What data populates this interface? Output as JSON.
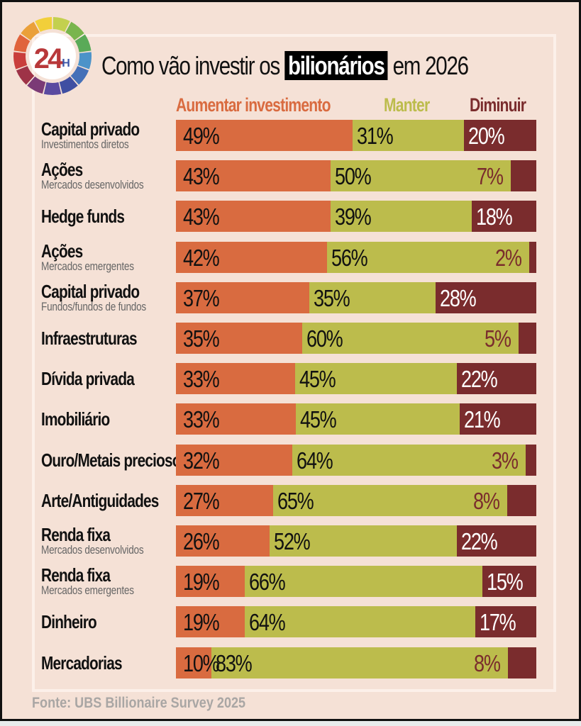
{
  "logo": {
    "text": "24",
    "suffix": "H"
  },
  "header": {
    "title_before": "Como vão investir os",
    "title_highlight": "bilionários",
    "title_after": "em 2026"
  },
  "colors": {
    "aumentar": "#d96b40",
    "manter": "#bcbc4c",
    "diminuir": "#7a2c2d",
    "background": "#f5e1d6"
  },
  "source": "Fonte: UBS Billionaire Survey 2025",
  "chart_data": {
    "type": "bar",
    "orientation": "horizontal",
    "stacked": true,
    "title": "Como vão investir os bilionários em 2026",
    "xlabel": "",
    "ylabel": "",
    "xlim": [
      0,
      100
    ],
    "unit": "%",
    "legend": [
      "Aumentar investimento",
      "Manter",
      "Diminuir"
    ],
    "legend_placement": "top",
    "categories": [
      {
        "name": "Capital privado",
        "sub": "Investimentos diretos"
      },
      {
        "name": "Ações",
        "sub": "Mercados desenvolvidos"
      },
      {
        "name": "Hedge funds",
        "sub": ""
      },
      {
        "name": "Ações",
        "sub": "Mercados emergentes"
      },
      {
        "name": "Capital privado",
        "sub": "Fundos/fundos de fundos"
      },
      {
        "name": "Infraestruturas",
        "sub": ""
      },
      {
        "name": "Dívida privada",
        "sub": ""
      },
      {
        "name": "Imobiliário",
        "sub": ""
      },
      {
        "name": "Ouro/Metais preciosos",
        "sub": ""
      },
      {
        "name": "Arte/Antiguidades",
        "sub": ""
      },
      {
        "name": "Renda fixa",
        "sub": "Mercados desenvolvidos"
      },
      {
        "name": "Renda fixa",
        "sub": "Mercados emergentes"
      },
      {
        "name": "Dinheiro",
        "sub": ""
      },
      {
        "name": "Mercadorias",
        "sub": ""
      }
    ],
    "series": [
      {
        "name": "Aumentar investimento",
        "values": [
          49,
          43,
          43,
          42,
          37,
          35,
          33,
          33,
          32,
          27,
          26,
          19,
          19,
          10
        ]
      },
      {
        "name": "Manter",
        "values": [
          31,
          50,
          39,
          56,
          35,
          60,
          45,
          45,
          64,
          65,
          52,
          66,
          64,
          83
        ]
      },
      {
        "name": "Diminuir",
        "values": [
          20,
          7,
          18,
          2,
          28,
          5,
          22,
          21,
          3,
          8,
          22,
          15,
          17,
          8
        ]
      }
    ]
  }
}
